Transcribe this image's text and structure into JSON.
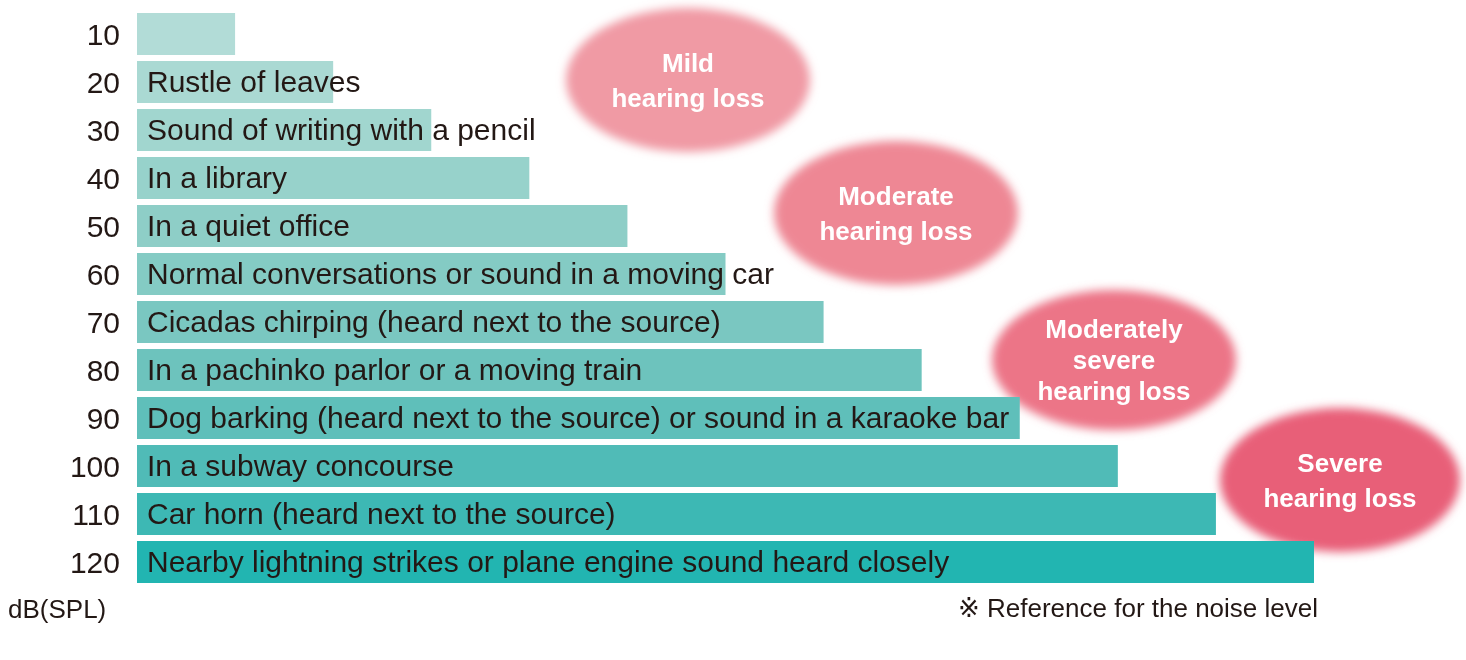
{
  "chart_data": {
    "type": "bar",
    "orientation": "horizontal",
    "xlabel": "dB(SPL)",
    "categories": [
      null,
      "Rustle of leaves",
      "Sound of writing with a pencil",
      "In a library",
      "In a quiet office",
      "Normal conversations or sound in a moving car",
      "Cicadas chirping (heard next to the source)",
      "In a pachinko parlor or a moving train",
      "Dog barking (heard next to the source) or sound in a karaoke bar",
      "In a subway concourse",
      "Car horn (heard next to the source)",
      "Nearby lightning strikes or plane engine sound heard closely"
    ],
    "values": [
      10,
      20,
      30,
      40,
      50,
      60,
      70,
      80,
      90,
      100,
      110,
      120
    ],
    "colors": [
      "#b2dcd7",
      "#aad9d3",
      "#a1d6cf",
      "#97d2cb",
      "#8ecec7",
      "#84cbc4",
      "#7ac7c1",
      "#6dc3bd",
      "#5fbfba",
      "#50bbb7",
      "#3db8b4",
      "#22b5b1"
    ],
    "data_labels": true,
    "annotations": [
      "Mild\nhearing loss",
      "Moderate\nhearing loss",
      "Moderately\nsevere\nhearing loss",
      "Severe\nhearing loss",
      "※ Reference for the noise level"
    ]
  }
}
